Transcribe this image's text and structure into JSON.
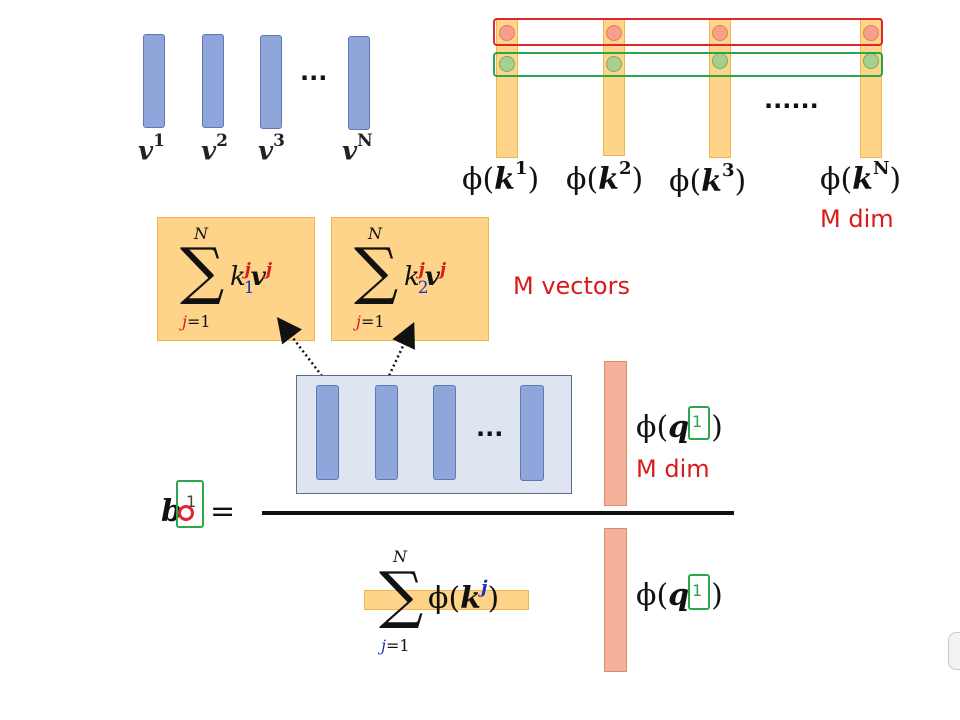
{
  "v_labels": [
    {
      "base": "v",
      "sup": "1"
    },
    {
      "base": "v",
      "sup": "2"
    },
    {
      "base": "v",
      "sup": "3"
    },
    {
      "base": "v",
      "sup": "N"
    }
  ],
  "v_ellipsis": "...",
  "k_ellipsis": "......",
  "phi_k_labels": [
    {
      "phi": "ϕ(",
      "k": "k",
      "sup": "1",
      "close": ")"
    },
    {
      "phi": "ϕ(",
      "k": "k",
      "sup": "2",
      "close": ")"
    },
    {
      "phi": "ϕ(",
      "k": "k",
      "sup": "3",
      "close": ")"
    },
    {
      "phi": "ϕ(",
      "k": "k",
      "sup": "N",
      "close": ")"
    }
  ],
  "m_dim_top": "M dim",
  "sum_boxes": [
    {
      "upper": "N",
      "lower": "j",
      "lower_eq": "=1",
      "k": "k",
      "sub": "1",
      "sup": "j",
      "v": "v",
      "vsup": "j"
    },
    {
      "upper": "N",
      "lower": "j",
      "lower_eq": "=1",
      "k": "k",
      "sub": "2",
      "sup": "j",
      "v": "v",
      "vsup": "j"
    }
  ],
  "m_vectors": "M vectors",
  "panel_ellipsis": "...",
  "phi_q_top": {
    "phi": "ϕ(",
    "q": "q",
    "idx": "1",
    "close": ")"
  },
  "m_dim_mid": "M dim",
  "b_label": {
    "b": "b",
    "idx": "1",
    "eq": "="
  },
  "denominator": {
    "upper": "N",
    "lower": "j",
    "lower_eq": "=1",
    "phi": "ϕ(",
    "k": "k",
    "sup": "j",
    "close": ")"
  },
  "phi_q_bottom": {
    "phi": "ϕ(",
    "q": "q",
    "idx": "1",
    "close": ")"
  },
  "colors": {
    "red": "#d81c1c",
    "green": "#2ba64d",
    "blue": "#8fa6db",
    "yellow": "#fdd48a",
    "salmon": "#f4b19a"
  }
}
